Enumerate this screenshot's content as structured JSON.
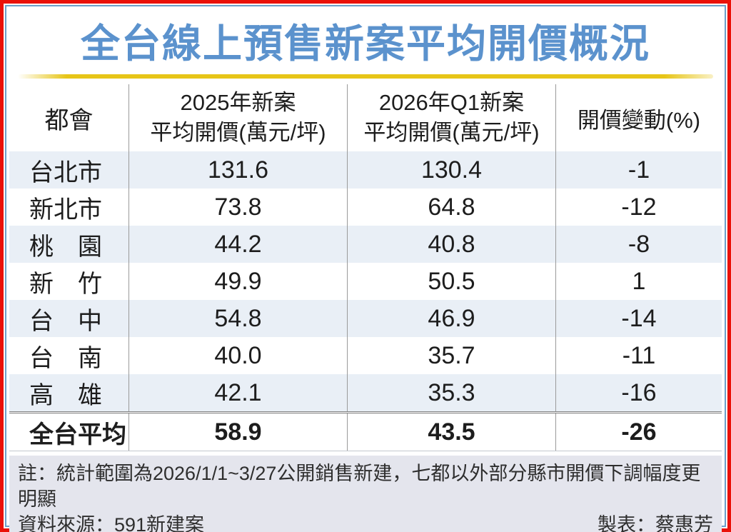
{
  "title": "全台線上預售新案平均開價概況",
  "colors": {
    "title-blue": "#5b92cd",
    "underline-yellow": "#e7c518",
    "stripe-blue": "#e9eff6",
    "footer-gray": "#e4e5ed",
    "border-red": "#ea1108",
    "border-blue": "#6b9fc9",
    "text-dark": "#1d1d1d",
    "divider-gray": "#9a9a9a"
  },
  "table": {
    "headers": {
      "metro": "都會",
      "col2025": {
        "line1": "2025年新案",
        "line2": "平均開價(萬元/坪)"
      },
      "col2026": {
        "line1": "2026年Q1新案",
        "line2": "平均開價(萬元/坪)"
      },
      "change": "開價變動(%)"
    },
    "rows": [
      {
        "city": "台北市",
        "y2025": "131.6",
        "q1": "130.4",
        "change": "-1"
      },
      {
        "city": "新北市",
        "y2025": "73.8",
        "q1": "64.8",
        "change": "-12"
      },
      {
        "city": "桃　園",
        "y2025": "44.2",
        "q1": "40.8",
        "change": "-8"
      },
      {
        "city": "新　竹",
        "y2025": "49.9",
        "q1": "50.5",
        "change": "1"
      },
      {
        "city": "台　中",
        "y2025": "54.8",
        "q1": "46.9",
        "change": "-14"
      },
      {
        "city": "台　南",
        "y2025": "40.0",
        "q1": "35.7",
        "change": "-11"
      },
      {
        "city": "高　雄",
        "y2025": "42.1",
        "q1": "35.3",
        "change": "-16"
      }
    ],
    "summary": {
      "city": "全台平均",
      "y2025": "58.9",
      "q1": "43.5",
      "change": "-26"
    }
  },
  "footnotes": {
    "note": "註：統計範圍為2026/1/1~3/27公開銷售新建，七都以外部分縣市開價下調幅度更明顯",
    "source": "資料來源：591新建案",
    "credit": "製表：蔡惠芳"
  },
  "chart_data": {
    "type": "table",
    "title": "全台線上預售新案平均開價概況",
    "columns": [
      "都會",
      "2025年新案平均開價(萬元/坪)",
      "2026年Q1新案平均開價(萬元/坪)",
      "開價變動(%)"
    ],
    "rows": [
      [
        "台北市",
        131.6,
        130.4,
        -1
      ],
      [
        "新北市",
        73.8,
        64.8,
        -12
      ],
      [
        "桃園",
        44.2,
        40.8,
        -8
      ],
      [
        "新竹",
        49.9,
        50.5,
        1
      ],
      [
        "台中",
        54.8,
        46.9,
        -14
      ],
      [
        "台南",
        40.0,
        35.7,
        -11
      ],
      [
        "高雄",
        42.1,
        35.3,
        -16
      ],
      [
        "全台平均",
        58.9,
        43.5,
        -26
      ]
    ],
    "notes": "註：統計範圍為2026/1/1~3/27公開銷售新建，七都以外部分縣市開價下調幅度更明顯",
    "source": "591新建案",
    "credit": "蔡惠芳"
  }
}
